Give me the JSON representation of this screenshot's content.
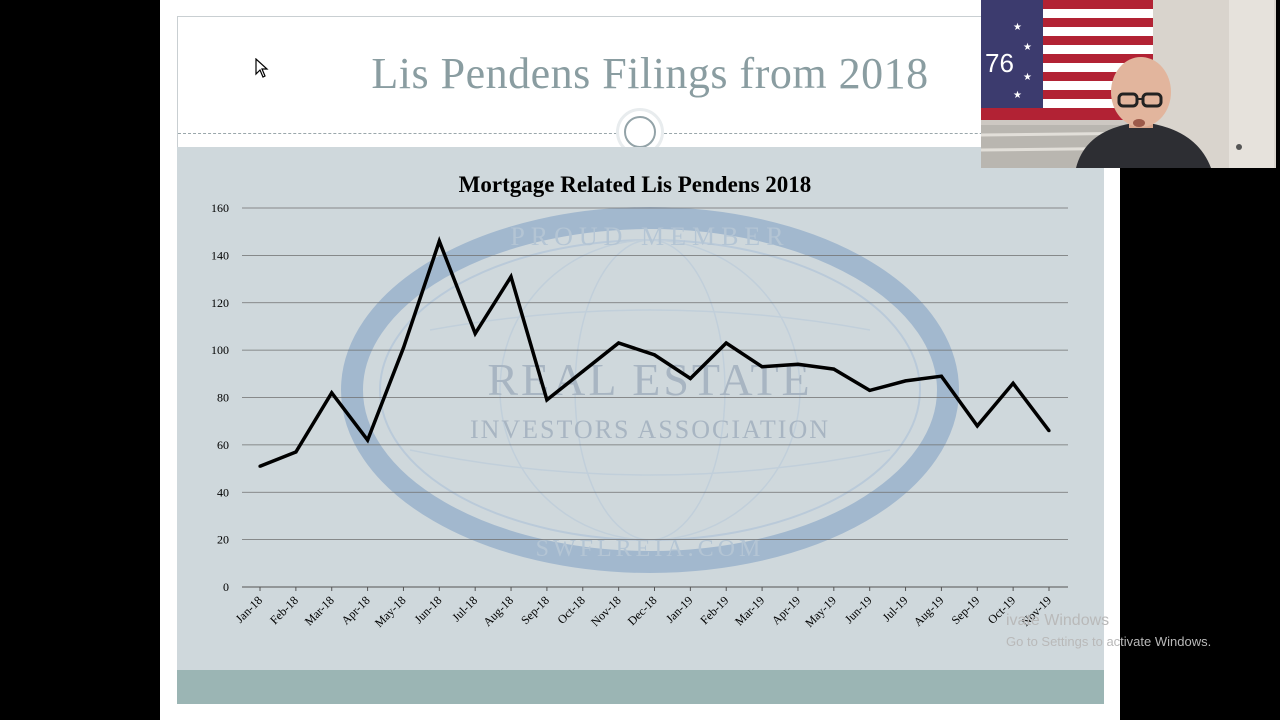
{
  "slide": {
    "title": "Lis Pendens Filings from 2018"
  },
  "chart_data": {
    "type": "line",
    "title": "Mortgage Related Lis Pendens 2018",
    "xlabel": "",
    "ylabel": "",
    "ylim": [
      0,
      160
    ],
    "y_ticks": [
      "0",
      "20",
      "40",
      "60",
      "80",
      "100",
      "120",
      "140",
      "160"
    ],
    "grid": true,
    "legend": "none",
    "categories": [
      "Jan-18",
      "Feb-18",
      "Mar-18",
      "Apr-18",
      "May-18",
      "Jun-18",
      "Jul-18",
      "Aug-18",
      "Sep-18",
      "Oct-18",
      "Nov-18",
      "Dec-18",
      "Jan-19",
      "Feb-19",
      "Mar-19",
      "Apr-19",
      "May-19",
      "Jun-19",
      "Jul-19",
      "Aug-19",
      "Sep-19",
      "Oct-19",
      "Nov-19"
    ],
    "values": [
      51,
      57,
      82,
      62,
      101,
      146,
      107,
      131,
      79,
      91,
      103,
      98,
      88,
      103,
      93,
      94,
      92,
      83,
      87,
      89,
      68,
      86,
      66
    ],
    "line_color": "#000000",
    "background_watermark": [
      "PROUD MEMBER",
      "REAL ESTATE",
      "INVESTORS ASSOCIATION",
      "SWFLREIA.COM"
    ]
  },
  "watermark": {
    "title": "ivate Windows",
    "subtitle": "Go to Settings to activate Windows."
  },
  "webcam": {
    "flag_text": "76"
  },
  "colors": {
    "title": "#8a9da1",
    "panel": "#cfd8dc",
    "footer": "#9bb5b4",
    "emblem": "#7f9fc4"
  }
}
